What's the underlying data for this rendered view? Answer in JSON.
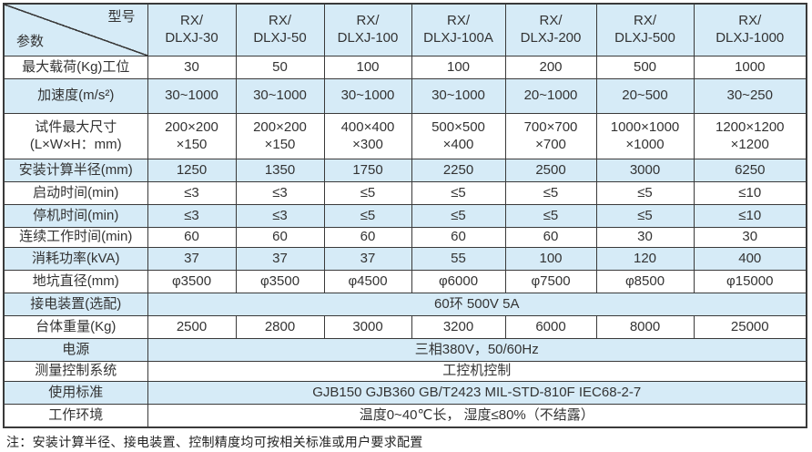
{
  "table": {
    "corner": {
      "model": "型号",
      "param": "参数"
    },
    "columns": [
      {
        "l1": "RX/",
        "l2": "DLXJ-30"
      },
      {
        "l1": "RX/",
        "l2": "DLXJ-50"
      },
      {
        "l1": "RX/",
        "l2": "DLXJ-100"
      },
      {
        "l1": "RX/",
        "l2": "DLXJ-100A"
      },
      {
        "l1": "RX/",
        "l2": "DLXJ-200"
      },
      {
        "l1": "RX/",
        "l2": "DLXJ-500"
      },
      {
        "l1": "RX/",
        "l2": "DLXJ-1000"
      }
    ],
    "rows": [
      {
        "label": "最大载荷(Kg)工位",
        "values": [
          "30",
          "50",
          "100",
          "100",
          "200",
          "500",
          "1000"
        ]
      },
      {
        "label": "加速度(m/s²)",
        "values": [
          "30~1000",
          "30~1000",
          "30~1000",
          "30~1000",
          "20~1000",
          "20~500",
          "30~250"
        ]
      },
      {
        "label": "试件最大尺寸\n(L×W×H：mm)",
        "values": [
          "200×200\n×150",
          "200×200\n×150",
          "400×400\n×300",
          "500×500\n×400",
          "700×700\n×700",
          "1000×1000\n×1000",
          "1200×1200\n×1200"
        ]
      },
      {
        "label": "安装计算半径(mm)",
        "values": [
          "1250",
          "1350",
          "1750",
          "2250",
          "2500",
          "3000",
          "6250"
        ]
      },
      {
        "label": "启动时间(min)",
        "values": [
          "≤3",
          "≤3",
          "≤5",
          "≤5",
          "≤5",
          "≤5",
          "≤10"
        ]
      },
      {
        "label": "停机时间(min)",
        "values": [
          "≤3",
          "≤3",
          "≤5",
          "≤5",
          "≤5",
          "≤5",
          "≤10"
        ]
      },
      {
        "label": "连续工作时间(min)",
        "values": [
          "60",
          "60",
          "60",
          "60",
          "60",
          "30",
          "30"
        ]
      },
      {
        "label": "消耗功率(kVA)",
        "values": [
          "37",
          "37",
          "37",
          "55",
          "100",
          "120",
          "400"
        ]
      },
      {
        "label": "地坑直径(mm)",
        "values": [
          "φ3500",
          "φ3500",
          "φ4500",
          "φ6000",
          "φ7500",
          "φ8500",
          "φ15000"
        ]
      },
      {
        "label": "接电装置(选配)",
        "merged": "60环  500V  5A"
      },
      {
        "label": "台体重量(Kg)",
        "values": [
          "2500",
          "2800",
          "3000",
          "3200",
          "6000",
          "8000",
          "25000"
        ]
      },
      {
        "label": "电源",
        "merged": "三相380V，50/60Hz"
      },
      {
        "label": "测量控制系统",
        "merged": "工控机控制"
      },
      {
        "label": "使用标准",
        "merged": "GJB150  GJB360 GB/T2423  MIL-STD-810F  IEC68-2-7"
      },
      {
        "label": "工作环境",
        "merged": "温度0~40℃长，  湿度≤80%（不结露）"
      }
    ],
    "note": "注：安装计算半径、接电装置、控制精度均可按相关标准或用户要求配置"
  },
  "colors": {
    "row_shade": "#d6ebf7",
    "border": "#3a3a3a",
    "text": "#333333",
    "background": "#ffffff"
  }
}
